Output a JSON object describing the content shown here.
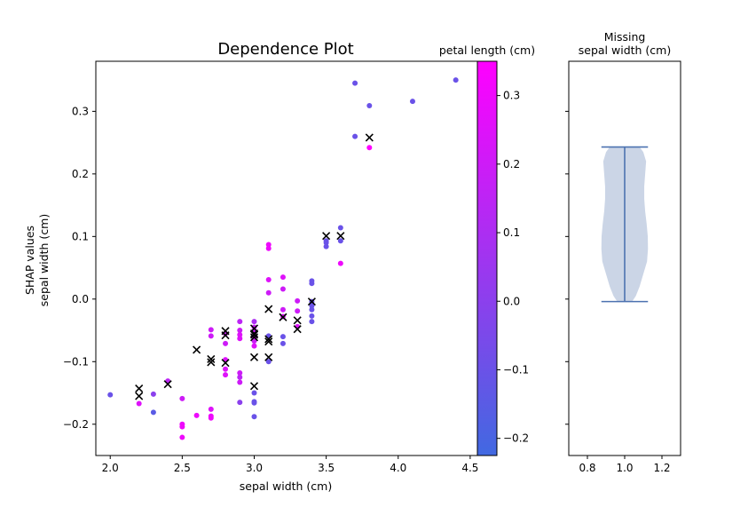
{
  "chart_data": [
    {
      "type": "scatter",
      "title": "Dependence Plot",
      "xlabel": "sepal width (cm)",
      "ylabel_line1": "SHAP values",
      "ylabel_line2": "sepal width (cm)",
      "xlim": [
        1.9,
        4.55
      ],
      "ylim": [
        -0.25,
        0.38
      ],
      "xticks": [
        2.0,
        2.5,
        3.0,
        3.5,
        4.0,
        4.5
      ],
      "xtick_labels": [
        "2.0",
        "2.5",
        "3.0",
        "3.5",
        "4.0",
        "4.5"
      ],
      "yticks": [
        -0.2,
        -0.1,
        0.0,
        0.1,
        0.2,
        0.3
      ],
      "ytick_labels": [
        "−0.2",
        "−0.1",
        "0.0",
        "0.1",
        "0.2",
        "0.3"
      ],
      "points": [
        [
          2.0,
          -0.153,
          -0.1
        ],
        [
          2.2,
          -0.167,
          0.25
        ],
        [
          2.3,
          -0.152,
          0.0
        ],
        [
          2.3,
          -0.181,
          -0.15
        ],
        [
          2.4,
          -0.131,
          0.15
        ],
        [
          2.5,
          -0.159,
          0.2
        ],
        [
          2.5,
          -0.2,
          0.3
        ],
        [
          2.5,
          -0.204,
          0.3
        ],
        [
          2.5,
          -0.221,
          0.3
        ],
        [
          2.6,
          -0.186,
          0.3
        ],
        [
          2.7,
          -0.049,
          0.2
        ],
        [
          2.7,
          -0.059,
          0.2
        ],
        [
          2.7,
          -0.176,
          0.25
        ],
        [
          2.7,
          -0.187,
          0.3
        ],
        [
          2.7,
          -0.19,
          0.3
        ],
        [
          2.8,
          -0.097,
          0.25
        ],
        [
          2.8,
          -0.112,
          0.25
        ],
        [
          2.8,
          -0.121,
          0.25
        ],
        [
          2.8,
          -0.055,
          0.2
        ],
        [
          2.8,
          -0.071,
          0.2
        ],
        [
          2.9,
          -0.036,
          0.15
        ],
        [
          2.9,
          -0.05,
          0.2
        ],
        [
          2.9,
          -0.057,
          0.25
        ],
        [
          2.9,
          -0.063,
          0.25
        ],
        [
          2.9,
          -0.118,
          0.2
        ],
        [
          2.9,
          -0.125,
          0.15
        ],
        [
          2.9,
          -0.133,
          0.2
        ],
        [
          2.9,
          -0.165,
          0.0
        ],
        [
          3.0,
          -0.036,
          0.1
        ],
        [
          3.0,
          -0.045,
          0.2
        ],
        [
          3.0,
          -0.053,
          0.2
        ],
        [
          3.0,
          -0.061,
          0.25
        ],
        [
          3.0,
          -0.067,
          0.2
        ],
        [
          3.0,
          -0.075,
          0.25
        ],
        [
          3.0,
          -0.15,
          -0.1
        ],
        [
          3.0,
          -0.164,
          -0.1
        ],
        [
          3.0,
          -0.166,
          -0.1
        ],
        [
          3.0,
          -0.188,
          -0.1
        ],
        [
          3.1,
          0.087,
          0.3
        ],
        [
          3.1,
          0.081,
          0.3
        ],
        [
          3.1,
          0.031,
          0.25
        ],
        [
          3.1,
          0.01,
          0.2
        ],
        [
          3.1,
          -0.059,
          -0.1
        ],
        [
          3.1,
          -0.1,
          -0.1
        ],
        [
          3.2,
          0.035,
          0.25
        ],
        [
          3.2,
          0.016,
          0.2
        ],
        [
          3.2,
          -0.017,
          0.2
        ],
        [
          3.2,
          -0.028,
          0.25
        ],
        [
          3.2,
          -0.06,
          -0.1
        ],
        [
          3.2,
          -0.071,
          -0.1
        ],
        [
          3.3,
          -0.003,
          0.2
        ],
        [
          3.3,
          -0.019,
          0.2
        ],
        [
          3.3,
          -0.044,
          0.25
        ],
        [
          3.4,
          0.029,
          -0.1
        ],
        [
          3.4,
          0.025,
          -0.1
        ],
        [
          3.4,
          -0.004,
          -0.1
        ],
        [
          3.4,
          -0.011,
          -0.1
        ],
        [
          3.4,
          -0.017,
          -0.1
        ],
        [
          3.4,
          -0.027,
          -0.1
        ],
        [
          3.4,
          -0.036,
          -0.1
        ],
        [
          3.5,
          0.093,
          -0.1
        ],
        [
          3.5,
          0.09,
          -0.1
        ],
        [
          3.5,
          0.084,
          -0.1
        ],
        [
          3.6,
          0.114,
          -0.1
        ],
        [
          3.6,
          0.093,
          -0.1
        ],
        [
          3.6,
          0.057,
          0.3
        ],
        [
          3.7,
          0.345,
          -0.1
        ],
        [
          3.7,
          0.26,
          -0.1
        ],
        [
          3.8,
          0.309,
          -0.1
        ],
        [
          3.8,
          0.242,
          0.35
        ],
        [
          4.1,
          0.316,
          -0.1
        ],
        [
          4.4,
          0.35,
          -0.1
        ]
      ],
      "missing_markers": [
        [
          2.2,
          -0.143
        ],
        [
          2.2,
          -0.155
        ],
        [
          2.4,
          -0.136
        ],
        [
          2.6,
          -0.081
        ],
        [
          2.7,
          -0.096
        ],
        [
          2.7,
          -0.101
        ],
        [
          2.8,
          -0.051
        ],
        [
          2.8,
          -0.058
        ],
        [
          2.8,
          -0.102
        ],
        [
          3.0,
          -0.047
        ],
        [
          3.0,
          -0.055
        ],
        [
          3.0,
          -0.057
        ],
        [
          3.0,
          -0.061
        ],
        [
          3.0,
          -0.093
        ],
        [
          3.0,
          -0.139
        ],
        [
          3.1,
          -0.016
        ],
        [
          3.1,
          -0.064
        ],
        [
          3.1,
          -0.068
        ],
        [
          3.1,
          -0.093
        ],
        [
          3.2,
          -0.029
        ],
        [
          3.3,
          -0.034
        ],
        [
          3.3,
          -0.048
        ],
        [
          3.4,
          -0.004
        ],
        [
          3.5,
          0.101
        ],
        [
          3.6,
          0.101
        ],
        [
          3.8,
          0.258
        ]
      ]
    },
    {
      "type": "colorbar",
      "label": "petal length (cm)",
      "range": [
        -0.225,
        0.35
      ],
      "ticks": [
        -0.2,
        -0.1,
        0.0,
        0.1,
        0.2,
        0.3
      ],
      "tick_labels": [
        "−0.2",
        "−0.1",
        "0.0",
        "0.1",
        "0.2",
        "0.3"
      ],
      "color_low": "#4169e1",
      "color_high": "#ff00ff"
    },
    {
      "type": "violin",
      "title_line1": "Missing",
      "title_line2": "sepal width (cm)",
      "xlim": [
        0.7,
        1.3
      ],
      "xticks": [
        0.8,
        1.0,
        1.2
      ],
      "xtick_labels": [
        "0.8",
        "1.0",
        "1.2"
      ],
      "position": 1.0,
      "min": -0.004,
      "max": 0.243,
      "density_y": [
        -0.004,
        0.005,
        0.02,
        0.04,
        0.06,
        0.08,
        0.1,
        0.12,
        0.14,
        0.16,
        0.18,
        0.2,
        0.22,
        0.235,
        0.243
      ],
      "density_half_width": [
        0.04,
        0.06,
        0.08,
        0.1,
        0.12,
        0.125,
        0.124,
        0.118,
        0.11,
        0.105,
        0.105,
        0.11,
        0.115,
        0.1,
        0.08
      ],
      "fill_color": "#cbd5e6",
      "line_color": "#4c72b0"
    }
  ],
  "colors": {
    "axis": "#000000",
    "marker_x": "#000000",
    "background": "#ffffff"
  }
}
